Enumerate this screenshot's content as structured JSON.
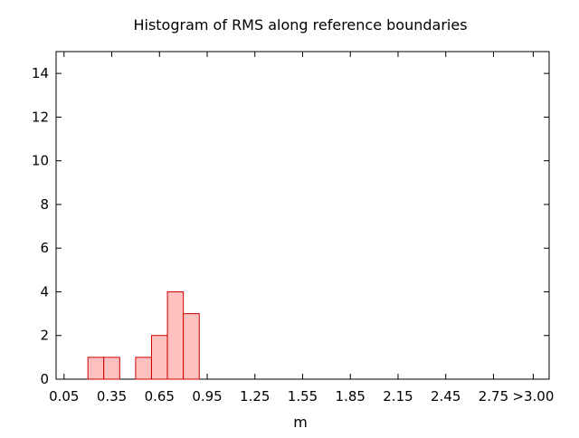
{
  "chart_data": {
    "type": "bar",
    "title": "Histogram of RMS along reference boundaries",
    "xlabel": "m",
    "ylabel": "",
    "xlim": [
      0.0,
      3.1
    ],
    "ylim": [
      0,
      15
    ],
    "bin_width": 0.1,
    "x_ticks": [
      {
        "value": 0.05,
        "label": "0.05"
      },
      {
        "value": 0.35,
        "label": "0.35"
      },
      {
        "value": 0.65,
        "label": "0.65"
      },
      {
        "value": 0.95,
        "label": "0.95"
      },
      {
        "value": 1.25,
        "label": "1.25"
      },
      {
        "value": 1.55,
        "label": "1.55"
      },
      {
        "value": 1.85,
        "label": "1.85"
      },
      {
        "value": 2.15,
        "label": "2.15"
      },
      {
        "value": 2.45,
        "label": "2.45"
      },
      {
        "value": 2.75,
        "label": "2.75"
      },
      {
        "value": 3.0,
        "label": ">3.00"
      }
    ],
    "y_ticks": [
      0,
      2,
      4,
      6,
      8,
      10,
      12,
      14
    ],
    "bins": [
      {
        "center": 0.25,
        "count": 1
      },
      {
        "center": 0.35,
        "count": 1
      },
      {
        "center": 0.55,
        "count": 1
      },
      {
        "center": 0.65,
        "count": 2
      },
      {
        "center": 0.75,
        "count": 4
      },
      {
        "center": 0.85,
        "count": 3
      }
    ],
    "grid": false,
    "colors": {
      "bar_fill": "#ffc0c0",
      "bar_stroke": "#cc0000"
    }
  }
}
